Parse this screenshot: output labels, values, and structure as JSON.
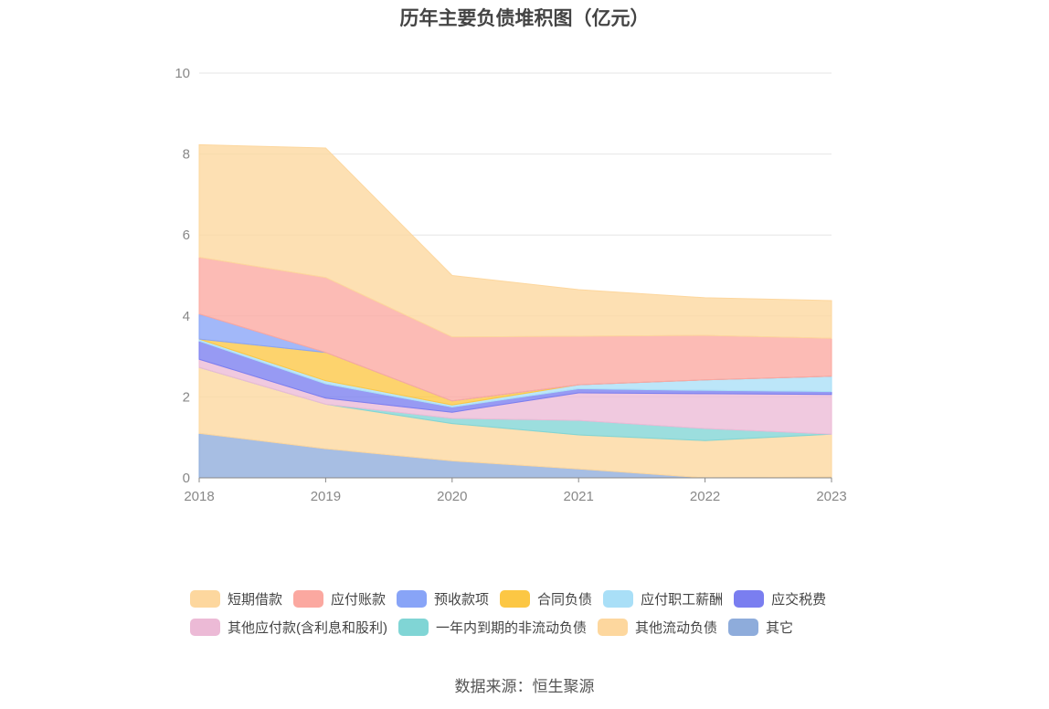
{
  "chart_data": {
    "type": "area",
    "stacked": true,
    "title": "历年主要负债堆积图（亿元）",
    "xlabel": "",
    "ylabel": "",
    "x": [
      "2018",
      "2019",
      "2020",
      "2021",
      "2022",
      "2023"
    ],
    "ylim": [
      0,
      10
    ],
    "yticks": [
      "0",
      "2",
      "4",
      "6",
      "8",
      "10"
    ],
    "grid": true,
    "legend_position": "bottom",
    "series": [
      {
        "name": "其它",
        "color": "#8eacdb",
        "values": [
          1.1,
          0.72,
          0.42,
          0.22,
          0.0,
          0.02
        ]
      },
      {
        "name": "其他流动负债",
        "color": "#fdd79e",
        "values": [
          1.63,
          1.1,
          0.92,
          0.84,
          0.92,
          1.06
        ]
      },
      {
        "name": "一年内到期的非流动负债",
        "color": "#80d5d5",
        "values": [
          0.0,
          0.0,
          0.13,
          0.36,
          0.3,
          0.0
        ]
      },
      {
        "name": "其他应付款(含利息和股利)",
        "color": "#ecbad6",
        "values": [
          0.2,
          0.15,
          0.15,
          0.68,
          0.86,
          0.98
        ]
      },
      {
        "name": "应交税费",
        "color": "#7a7ef0",
        "values": [
          0.45,
          0.35,
          0.13,
          0.1,
          0.08,
          0.07
        ]
      },
      {
        "name": "应付职工薪酬",
        "color": "#a9dff7",
        "values": [
          0.05,
          0.08,
          0.05,
          0.1,
          0.26,
          0.38
        ]
      },
      {
        "name": "合同负债",
        "color": "#fcc744",
        "values": [
          0.0,
          0.7,
          0.1,
          0.0,
          0.0,
          0.0
        ]
      },
      {
        "name": "预收款项",
        "color": "#88a4f7",
        "values": [
          0.62,
          0.0,
          0.0,
          0.0,
          0.0,
          0.0
        ]
      },
      {
        "name": "应付账款",
        "color": "#fba8a0",
        "values": [
          1.4,
          1.85,
          1.58,
          1.2,
          1.1,
          0.94
        ]
      },
      {
        "name": "短期借款",
        "color": "#fdd79e",
        "values": [
          2.78,
          3.2,
          1.52,
          1.15,
          0.93,
          0.93
        ]
      }
    ]
  },
  "legend": {
    "row1": [
      {
        "label": "短期借款",
        "color": "#fdd79e"
      },
      {
        "label": "应付账款",
        "color": "#fba8a0"
      },
      {
        "label": "预收款项",
        "color": "#88a4f7"
      },
      {
        "label": "合同负债",
        "color": "#fcc744"
      },
      {
        "label": "应付职工薪酬",
        "color": "#a9dff7"
      },
      {
        "label": "应交税费",
        "color": "#7a7ef0"
      }
    ],
    "row2": [
      {
        "label": "其他应付款(含利息和股利)",
        "color": "#ecbad6"
      },
      {
        "label": "一年内到期的非流动负债",
        "color": "#80d5d5"
      },
      {
        "label": "其他流动负债",
        "color": "#fdd79e"
      },
      {
        "label": "其它",
        "color": "#8eacdb"
      }
    ]
  },
  "source": "数据来源：恒生聚源"
}
